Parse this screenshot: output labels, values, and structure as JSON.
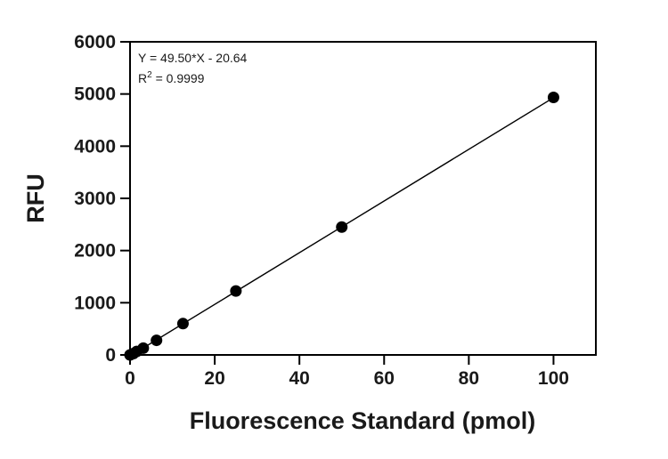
{
  "chart_data": {
    "type": "scatter",
    "xlabel": "Fluorescence Standard (pmol)",
    "ylabel": "RFU",
    "xlim": [
      0,
      110
    ],
    "ylim": [
      0,
      6000
    ],
    "x_ticks": [
      0,
      20,
      40,
      60,
      80,
      100
    ],
    "y_ticks": [
      0,
      1000,
      2000,
      3000,
      4000,
      5000,
      6000
    ],
    "grid": false,
    "legend": "none",
    "series": [
      {
        "x": [
          0,
          0.78,
          1.56,
          3.125,
          6.25,
          12.5,
          25,
          50,
          100
        ],
        "y": [
          0,
          25,
          65,
          130,
          280,
          600,
          1225,
          2450,
          4935
        ]
      }
    ],
    "fit": {
      "type": "linear",
      "slope": 49.5,
      "intercept": -20.64,
      "x_range": [
        0,
        100
      ],
      "equation_label": "Y = 49.50*X - 20.64",
      "r2_prefix": "R",
      "r2_sup": "2",
      "r2_value": " = 0.9999"
    },
    "colors": {
      "marker": "#000000",
      "line": "#000000",
      "axis": "#000000"
    }
  }
}
